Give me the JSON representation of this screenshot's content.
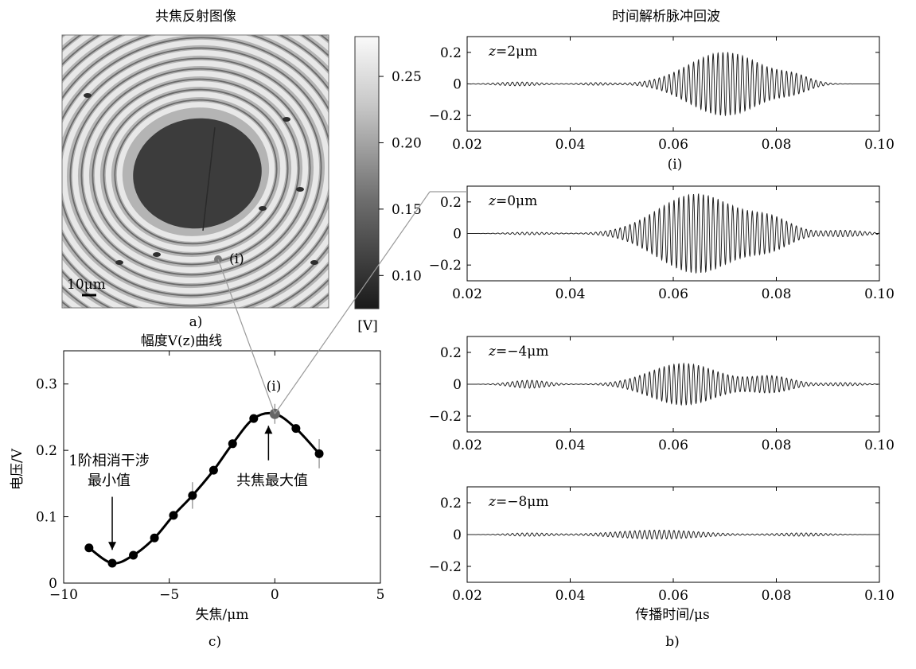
{
  "panel_a": {
    "title": "共焦反射图像",
    "label": "a)",
    "scalebar_label": "10μm",
    "marker_label": "(i)",
    "colorbar_ticks": [
      "0.25",
      "0.20",
      "0.15",
      "0.10"
    ],
    "colorbar_tick_values": [
      0.25,
      0.2,
      0.15,
      0.1
    ],
    "colorbar_range": [
      0.075,
      0.28
    ],
    "colorbar_unit": "[V]"
  },
  "panel_b": {
    "title": "时间解析脉冲回波",
    "label": "b)",
    "xlabel": "传播时间/μs",
    "sublabel_i": "(i)",
    "xticks": [
      "0.02",
      "0.04",
      "0.06",
      "0.08",
      "0.10"
    ],
    "yticks": [
      "0.2",
      "0",
      "−0.2"
    ]
  },
  "panel_c": {
    "title": "幅度V(z)曲线",
    "label": "c)",
    "xlabel": "失焦/μm",
    "ylabel": "电压/V",
    "point_label": "(i)",
    "annotation_min_line1": "1阶相消干涉",
    "annotation_min_line2": "最小值",
    "annotation_max": "共焦最大值",
    "xticks": [
      "−10",
      "−5",
      "0",
      "5"
    ],
    "yticks": [
      "0.3",
      "0.2",
      "0.1",
      "0"
    ]
  },
  "chart_data": [
    {
      "type": "line",
      "panel": "c",
      "title": "幅度V(z)曲线",
      "xlabel": "失焦/μm",
      "ylabel": "电压/V",
      "xlim": [
        -10,
        5
      ],
      "ylim": [
        0,
        0.35
      ],
      "x": [
        -8.8,
        -7.7,
        -6.7,
        -5.7,
        -4.8,
        -3.9,
        -2.9,
        -2.0,
        -1.0,
        0.0,
        1.0,
        2.1
      ],
      "y": [
        0.053,
        0.03,
        0.042,
        0.068,
        0.102,
        0.132,
        0.17,
        0.21,
        0.248,
        0.255,
        0.233,
        0.195
      ],
      "error_bars": [
        0,
        0,
        0,
        0,
        0,
        0.02,
        0,
        0,
        0,
        0.015,
        0,
        0.022
      ],
      "highlight_point_x": 0.0
    },
    {
      "type": "line",
      "panel": "b",
      "title": "z=2μm",
      "xlabel": "",
      "xlim": [
        0.02,
        0.1
      ],
      "ylim": [
        -0.3,
        0.3
      ],
      "envelope": [
        {
          "center": 0.07,
          "width": 0.007,
          "amplitude": 0.2
        },
        {
          "center": 0.0835,
          "width": 0.003,
          "amplitude": 0.04
        },
        {
          "center": 0.03,
          "width": 0.004,
          "amplitude": 0.012
        },
        {
          "center": 0.045,
          "width": 0.003,
          "amplitude": 0.008
        }
      ],
      "carrier_period": 0.00095
    },
    {
      "type": "line",
      "panel": "b",
      "title": "z=0μm",
      "xlabel": "",
      "xlim": [
        0.02,
        0.1
      ],
      "ylim": [
        -0.3,
        0.3
      ],
      "envelope": [
        {
          "center": 0.0645,
          "width": 0.0075,
          "amplitude": 0.25
        },
        {
          "center": 0.079,
          "width": 0.004,
          "amplitude": 0.08
        },
        {
          "center": 0.093,
          "width": 0.004,
          "amplitude": 0.02
        },
        {
          "center": 0.032,
          "width": 0.004,
          "amplitude": 0.008
        }
      ],
      "carrier_period": 0.00095
    },
    {
      "type": "line",
      "panel": "b",
      "title": "z=−4μm",
      "xlabel": "",
      "xlim": [
        0.02,
        0.1
      ],
      "ylim": [
        -0.3,
        0.3
      ],
      "envelope": [
        {
          "center": 0.062,
          "width": 0.0065,
          "amplitude": 0.13
        },
        {
          "center": 0.079,
          "width": 0.004,
          "amplitude": 0.05
        },
        {
          "center": 0.032,
          "width": 0.0035,
          "amplitude": 0.025
        },
        {
          "center": 0.093,
          "width": 0.0035,
          "amplitude": 0.01
        }
      ],
      "carrier_period": 0.00095
    },
    {
      "type": "line",
      "panel": "b",
      "title": "z=−8μm",
      "xlabel": "传播时间/μs",
      "xlim": [
        0.02,
        0.1
      ],
      "ylim": [
        -0.3,
        0.3
      ],
      "envelope": [
        {
          "center": 0.057,
          "width": 0.008,
          "amplitude": 0.028
        },
        {
          "center": 0.032,
          "width": 0.004,
          "amplitude": 0.01
        },
        {
          "center": 0.085,
          "width": 0.005,
          "amplitude": 0.01
        }
      ],
      "carrier_period": 0.00095
    }
  ]
}
